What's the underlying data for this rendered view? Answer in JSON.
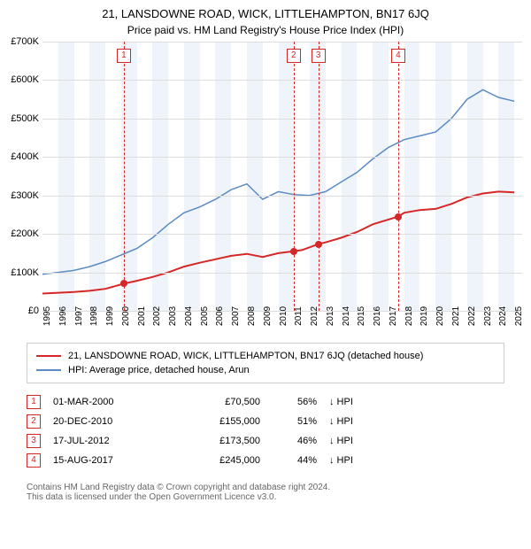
{
  "title": "21, LANSDOWNE ROAD, WICK, LITTLEHAMPTON, BN17 6JQ",
  "subtitle": "Price paid vs. HM Land Registry's House Price Index (HPI)",
  "chart": {
    "type": "line",
    "background_color": "#ffffff",
    "band_color": "#eef4f9",
    "grid_color": "#dddddd",
    "axis_font_size": 11,
    "xtick_font_size": 10,
    "x_start": 1995,
    "x_end": 2025.5,
    "x_ticks": [
      1995,
      1996,
      1997,
      1998,
      1999,
      2000,
      2001,
      2002,
      2003,
      2004,
      2005,
      2006,
      2007,
      2008,
      2009,
      2010,
      2011,
      2012,
      2013,
      2014,
      2015,
      2016,
      2017,
      2018,
      2019,
      2020,
      2021,
      2022,
      2023,
      2024,
      2025
    ],
    "ylim": [
      0,
      700000
    ],
    "y_ticks": [
      {
        "v": 0,
        "label": "£0"
      },
      {
        "v": 100000,
        "label": "£100K"
      },
      {
        "v": 200000,
        "label": "£200K"
      },
      {
        "v": 300000,
        "label": "£300K"
      },
      {
        "v": 400000,
        "label": "£400K"
      },
      {
        "v": 500000,
        "label": "£500K"
      },
      {
        "v": 600000,
        "label": "£600K"
      },
      {
        "v": 700000,
        "label": "£700K"
      }
    ],
    "series": [
      {
        "name": "property",
        "color": "#d62728",
        "width": 2,
        "points": [
          [
            1995,
            45000
          ],
          [
            1996,
            47000
          ],
          [
            1997,
            49000
          ],
          [
            1998,
            52000
          ],
          [
            1999,
            57000
          ],
          [
            2000.17,
            70500
          ],
          [
            2001,
            78000
          ],
          [
            2002,
            88000
          ],
          [
            2003,
            100000
          ],
          [
            2004,
            115000
          ],
          [
            2005,
            125000
          ],
          [
            2006,
            134000
          ],
          [
            2007,
            143000
          ],
          [
            2008,
            148000
          ],
          [
            2009,
            140000
          ],
          [
            2010,
            150000
          ],
          [
            2010.97,
            155000
          ],
          [
            2011.5,
            158000
          ],
          [
            2012.54,
            173500
          ],
          [
            2013,
            178000
          ],
          [
            2014,
            190000
          ],
          [
            2015,
            205000
          ],
          [
            2016,
            225000
          ],
          [
            2017.62,
            245000
          ],
          [
            2018,
            255000
          ],
          [
            2019,
            262000
          ],
          [
            2020,
            265000
          ],
          [
            2021,
            278000
          ],
          [
            2022,
            295000
          ],
          [
            2023,
            305000
          ],
          [
            2024,
            310000
          ],
          [
            2025,
            308000
          ]
        ]
      },
      {
        "name": "hpi",
        "color": "#5b8bc5",
        "width": 1.5,
        "points": [
          [
            1995,
            95000
          ],
          [
            1996,
            100000
          ],
          [
            1997,
            105000
          ],
          [
            1998,
            115000
          ],
          [
            1999,
            128000
          ],
          [
            2000,
            145000
          ],
          [
            2001,
            162000
          ],
          [
            2002,
            190000
          ],
          [
            2003,
            225000
          ],
          [
            2004,
            255000
          ],
          [
            2005,
            270000
          ],
          [
            2006,
            290000
          ],
          [
            2007,
            315000
          ],
          [
            2008,
            330000
          ],
          [
            2009,
            290000
          ],
          [
            2010,
            310000
          ],
          [
            2011,
            302000
          ],
          [
            2012,
            300000
          ],
          [
            2013,
            310000
          ],
          [
            2014,
            335000
          ],
          [
            2015,
            360000
          ],
          [
            2016,
            395000
          ],
          [
            2017,
            425000
          ],
          [
            2018,
            445000
          ],
          [
            2019,
            455000
          ],
          [
            2020,
            465000
          ],
          [
            2021,
            500000
          ],
          [
            2022,
            550000
          ],
          [
            2023,
            575000
          ],
          [
            2024,
            555000
          ],
          [
            2025,
            545000
          ]
        ]
      }
    ],
    "sale_markers": [
      {
        "n": "1",
        "x": 2000.17,
        "price": 70500,
        "color": "#d62728"
      },
      {
        "n": "2",
        "x": 2010.97,
        "price": 155000,
        "color": "#d62728"
      },
      {
        "n": "3",
        "x": 2012.54,
        "price": 173500,
        "color": "#d62728"
      },
      {
        "n": "4",
        "x": 2017.62,
        "price": 245000,
        "color": "#d62728"
      }
    ],
    "marker_line_color": "#d62728",
    "marker_box_border": "#d62728",
    "dot_color": "#d62728"
  },
  "legend": {
    "items": [
      {
        "color": "#d62728",
        "label": "21, LANSDOWNE ROAD, WICK, LITTLEHAMPTON, BN17 6JQ (detached house)"
      },
      {
        "color": "#5b8bc5",
        "label": "HPI: Average price, detached house, Arun"
      }
    ]
  },
  "sales": {
    "hpi_label": "HPI",
    "rows": [
      {
        "n": "1",
        "date": "01-MAR-2000",
        "price": "£70,500",
        "pct": "56%",
        "arrow": "↓",
        "box_color": "#d62728"
      },
      {
        "n": "2",
        "date": "20-DEC-2010",
        "price": "£155,000",
        "pct": "51%",
        "arrow": "↓",
        "box_color": "#d62728"
      },
      {
        "n": "3",
        "date": "17-JUL-2012",
        "price": "£173,500",
        "pct": "46%",
        "arrow": "↓",
        "box_color": "#d62728"
      },
      {
        "n": "4",
        "date": "15-AUG-2017",
        "price": "£245,000",
        "pct": "44%",
        "arrow": "↓",
        "box_color": "#d62728"
      }
    ]
  },
  "footer": {
    "line1": "Contains HM Land Registry data © Crown copyright and database right 2024.",
    "line2": "This data is licensed under the Open Government Licence v3.0."
  }
}
